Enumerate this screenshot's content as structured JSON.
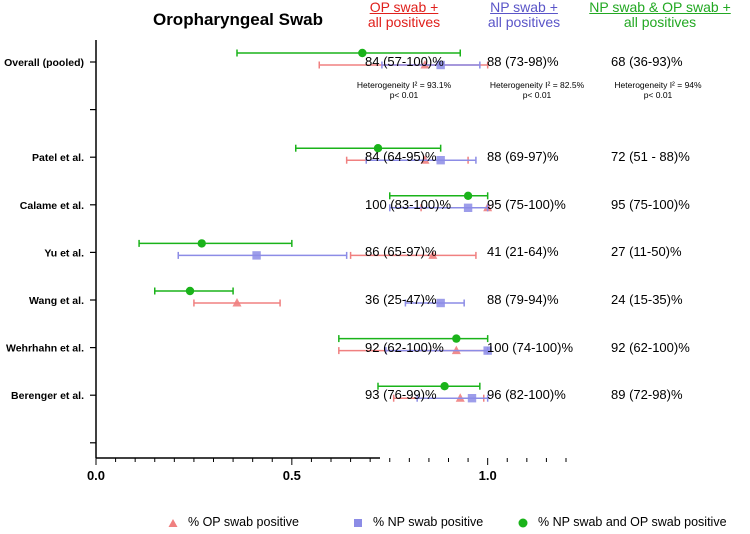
{
  "chart_data": {
    "type": "forest",
    "title": "Oropharyngeal Swab",
    "xlabel": "",
    "xlim": [
      0,
      1.2
    ],
    "xticks": [
      0.0,
      0.5,
      1.0
    ],
    "xtick_labels": [
      "0.0",
      "0.5",
      "1.0"
    ],
    "column_headers": [
      {
        "line1": "OP swab +",
        "line2": "all positives"
      },
      {
        "line1": "NP swab +",
        "line2": "all positives"
      },
      {
        "line1": "NP swab & OP swab +",
        "line2": "all positives"
      }
    ],
    "series": [
      {
        "name": "% OP swab positive",
        "key": "op",
        "color": "#f08080",
        "marker": "triangle"
      },
      {
        "name": "% NP swab positive",
        "key": "np",
        "color": "#8c8ce6",
        "marker": "square"
      },
      {
        "name": "% NP swab and OP swab positive",
        "key": "both",
        "color": "#1ab31a",
        "marker": "circle"
      }
    ],
    "studies": [
      {
        "label": "Overall (pooled)",
        "op": {
          "est": 0.84,
          "lo": 0.57,
          "hi": 1.0
        },
        "np": {
          "est": 0.88,
          "lo": 0.73,
          "hi": 0.98
        },
        "both": {
          "est": 0.68,
          "lo": 0.36,
          "hi": 0.93
        },
        "op_text": "84 (57-100)%",
        "np_text": "88 (73-98)%",
        "both_text": "68 (36-93)%",
        "het_op": {
          "line1": "Heterogeneity I² = 93.1%",
          "line2": "p< 0.01"
        },
        "het_np": {
          "line1": "Heterogeneity I² = 82.5%",
          "line2": "p< 0.01"
        },
        "het_both": {
          "line1": "Heterogeneity I² = 94%",
          "line2": "p< 0.01"
        }
      },
      {
        "label": "Patel et al.",
        "op": {
          "est": 0.84,
          "lo": 0.64,
          "hi": 0.95
        },
        "np": {
          "est": 0.88,
          "lo": 0.69,
          "hi": 0.97
        },
        "both": {
          "est": 0.72,
          "lo": 0.51,
          "hi": 0.88
        },
        "op_text": "84 (64-95)%",
        "np_text": "88  (69-97)%",
        "both_text": "72 (51 - 88)%"
      },
      {
        "label": "Calame et al.",
        "op": {
          "est": 1.0,
          "lo": 0.83,
          "hi": 1.0
        },
        "np": {
          "est": 0.95,
          "lo": 0.75,
          "hi": 1.0
        },
        "both": {
          "est": 0.95,
          "lo": 0.75,
          "hi": 1.0
        },
        "op_text": "100 (83-100)%",
        "np_text": "95 (75-100)%",
        "both_text": "95 (75-100)%"
      },
      {
        "label": "Yu et al.",
        "op": {
          "est": 0.86,
          "lo": 0.65,
          "hi": 0.97
        },
        "np": {
          "est": 0.41,
          "lo": 0.21,
          "hi": 0.64
        },
        "both": {
          "est": 0.27,
          "lo": 0.11,
          "hi": 0.5
        },
        "op_text": "86 (65-97)%",
        "np_text": "41 (21-64)%",
        "both_text": "27 (11-50)%"
      },
      {
        "label": "Wang et al.",
        "op": {
          "est": 0.36,
          "lo": 0.25,
          "hi": 0.47
        },
        "np": {
          "est": 0.88,
          "lo": 0.79,
          "hi": 0.94
        },
        "both": {
          "est": 0.24,
          "lo": 0.15,
          "hi": 0.35
        },
        "op_text": "36 (25-47)%",
        "np_text": "88 (79-94)%",
        "both_text": "24 (15-35)%"
      },
      {
        "label": "Wehrhahn et al.",
        "op": {
          "est": 0.92,
          "lo": 0.62,
          "hi": 1.0
        },
        "np": {
          "est": 1.0,
          "lo": 0.74,
          "hi": 1.0
        },
        "both": {
          "est": 0.92,
          "lo": 0.62,
          "hi": 1.0
        },
        "op_text": "92 (62-100)%",
        "np_text": "100 (74-100)%",
        "both_text": "92 (62-100)%"
      },
      {
        "label": "Berenger et al.",
        "op": {
          "est": 0.93,
          "lo": 0.76,
          "hi": 0.99
        },
        "np": {
          "est": 0.96,
          "lo": 0.82,
          "hi": 1.0
        },
        "both": {
          "est": 0.89,
          "lo": 0.72,
          "hi": 0.98
        },
        "op_text": "93 (76-99)%",
        "np_text": "96 (82-100)%",
        "both_text": "89 (72-98)%"
      }
    ]
  }
}
